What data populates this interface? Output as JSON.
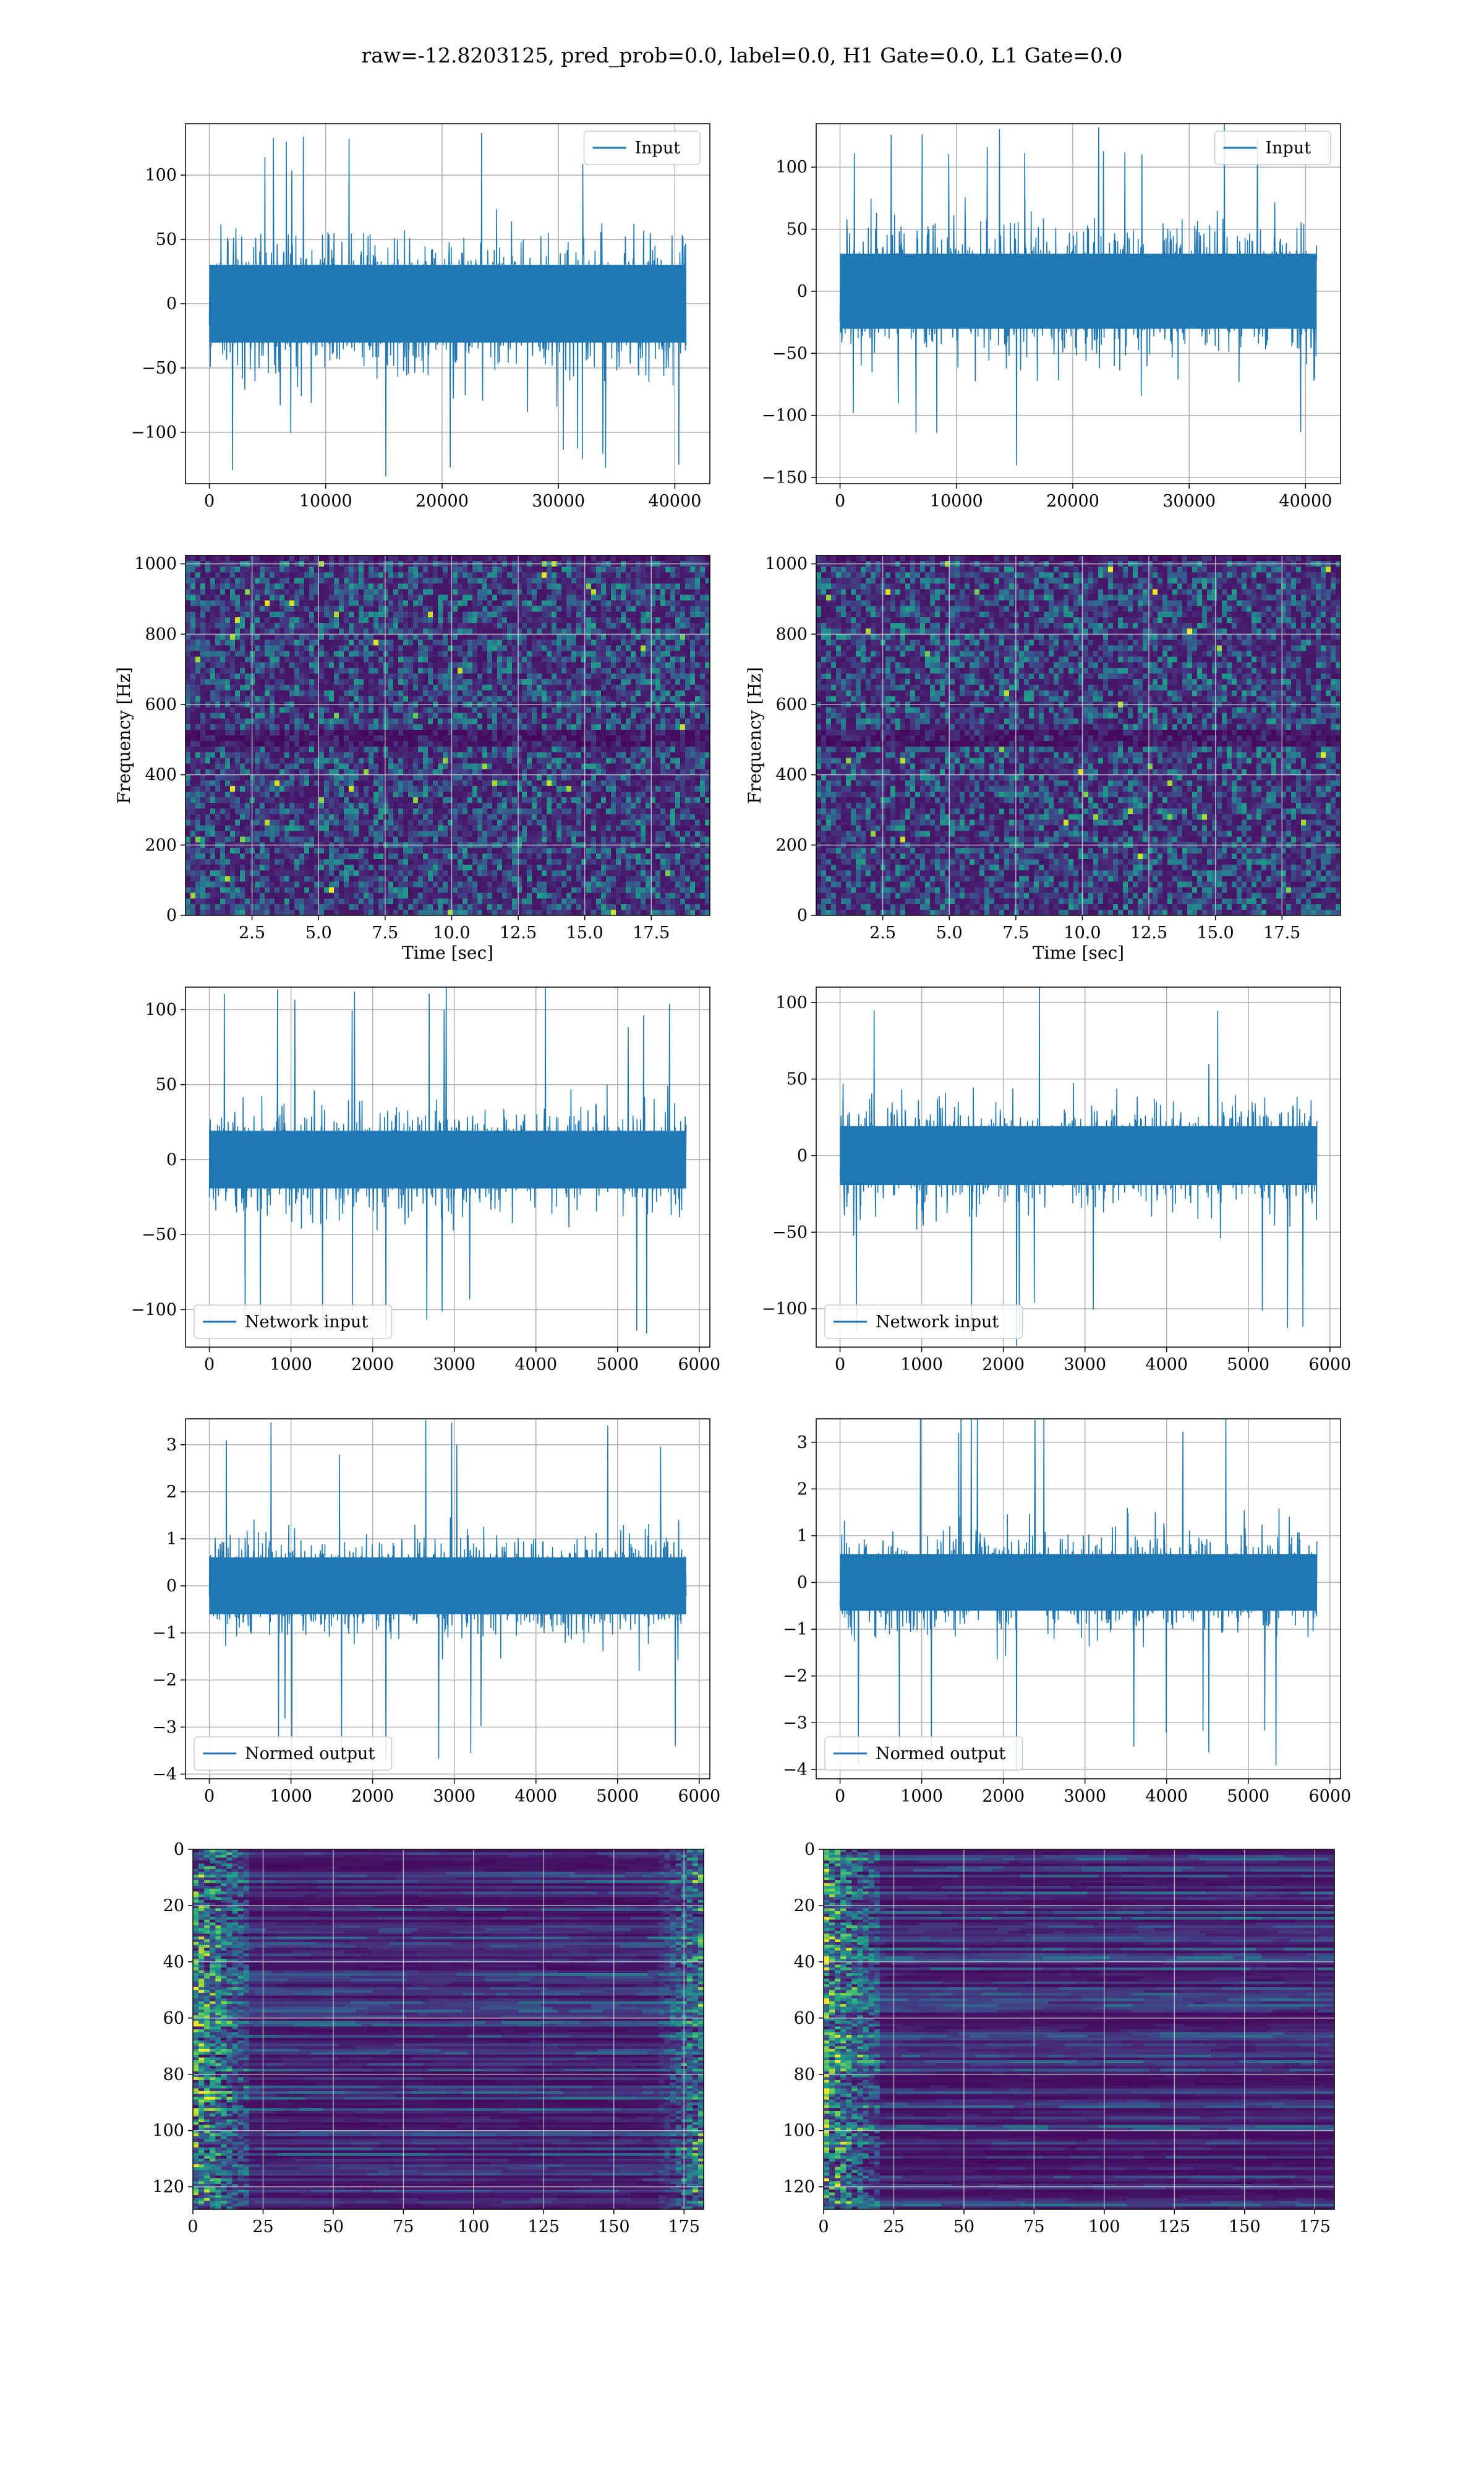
{
  "suptitle": "raw=-12.8203125, pred_prob=0.0, label=0.0, H1 Gate=0.0, L1 Gate=0.0",
  "colors": {
    "line": "#1f77b4",
    "grid": "#b0b0b0",
    "spine": "#000000"
  },
  "chart_data": [
    {
      "id": "input-left",
      "type": "line",
      "title": "",
      "xlabel": "",
      "ylabel": "",
      "xlim": [
        -2048,
        43008
      ],
      "ylim": [
        -140,
        140
      ],
      "xticks": [
        0,
        10000,
        20000,
        30000,
        40000
      ],
      "xtick_labels": [
        "0",
        "10000",
        "20000",
        "30000",
        "40000"
      ],
      "yticks": [
        -100,
        -50,
        0,
        50,
        100
      ],
      "ytick_labels": [
        "−100",
        "−50",
        "0",
        "50",
        "100"
      ],
      "grid": true,
      "legend": {
        "location": "upper right",
        "entries": [
          "Input"
        ]
      },
      "series": [
        {
          "name": "Input",
          "x_range": [
            0,
            40960
          ],
          "points": 1400,
          "typical_abs": 55,
          "peak_abs": 134,
          "shape": "gaussian noise"
        }
      ]
    },
    {
      "id": "input-right",
      "type": "line",
      "title": "",
      "xlabel": "",
      "ylabel": "",
      "xlim": [
        -2048,
        43008
      ],
      "ylim": [
        -155,
        135
      ],
      "xticks": [
        0,
        10000,
        20000,
        30000,
        40000
      ],
      "xtick_labels": [
        "0",
        "10000",
        "20000",
        "30000",
        "40000"
      ],
      "yticks": [
        -150,
        -100,
        -50,
        0,
        50,
        100
      ],
      "ytick_labels": [
        "−150",
        "−100",
        "−50",
        "0",
        "50",
        "100"
      ],
      "grid": true,
      "legend": {
        "location": "upper right",
        "entries": [
          "Input"
        ]
      },
      "series": [
        {
          "name": "Input",
          "x_range": [
            0,
            40960
          ],
          "points": 1400,
          "typical_abs": 55,
          "peak_abs": 140,
          "shape": "gaussian noise"
        }
      ]
    },
    {
      "id": "spectrogram-left",
      "type": "heatmap",
      "title": "",
      "xlabel": "Time [sec]",
      "ylabel": "Frequency [Hz]",
      "xlim": [
        0,
        19.7
      ],
      "ylim": [
        0,
        1024
      ],
      "xticks": [
        2.5,
        5.0,
        7.5,
        10.0,
        12.5,
        15.0,
        17.5
      ],
      "xtick_labels": [
        "2.5",
        "5.0",
        "7.5",
        "10.0",
        "12.5",
        "15.0",
        "17.5"
      ],
      "yticks": [
        0,
        200,
        400,
        600,
        800,
        1000
      ],
      "ytick_labels": [
        "0",
        "200",
        "400",
        "600",
        "800",
        "1000"
      ],
      "grid": true,
      "colormap": "viridis",
      "colormap_stops": [
        "#440154",
        "#472c7a",
        "#3b518b",
        "#2c718e",
        "#21908d",
        "#27ad81",
        "#5cc863",
        "#aadc32",
        "#fde725"
      ],
      "features": {
        "dark_band_hz": [
          480,
          520
        ],
        "pattern": "speckled noise"
      }
    },
    {
      "id": "spectrogram-right",
      "type": "heatmap",
      "title": "",
      "xlabel": "Time [sec]",
      "ylabel": "Frequency [Hz]",
      "xlim": [
        0,
        19.7
      ],
      "ylim": [
        0,
        1024
      ],
      "xticks": [
        2.5,
        5.0,
        7.5,
        10.0,
        12.5,
        15.0,
        17.5
      ],
      "xtick_labels": [
        "2.5",
        "5.0",
        "7.5",
        "10.0",
        "12.5",
        "15.0",
        "17.5"
      ],
      "yticks": [
        0,
        200,
        400,
        600,
        800,
        1000
      ],
      "ytick_labels": [
        "0",
        "200",
        "400",
        "600",
        "800",
        "1000"
      ],
      "grid": true,
      "colormap": "viridis",
      "colormap_stops": [
        "#440154",
        "#472c7a",
        "#3b518b",
        "#2c718e",
        "#21908d",
        "#27ad81",
        "#5cc863",
        "#aadc32",
        "#fde725"
      ],
      "features": {
        "dark_band_hz": [
          480,
          520
        ],
        "pattern": "speckled noise"
      }
    },
    {
      "id": "network-input-left",
      "type": "line",
      "title": "",
      "xlabel": "",
      "ylabel": "",
      "xlim": [
        -292,
        6130
      ],
      "ylim": [
        -125,
        115
      ],
      "xticks": [
        0,
        1000,
        2000,
        3000,
        4000,
        5000,
        6000
      ],
      "xtick_labels": [
        "0",
        "1000",
        "2000",
        "3000",
        "4000",
        "5000",
        "6000"
      ],
      "yticks": [
        -100,
        -50,
        0,
        50,
        100
      ],
      "ytick_labels": [
        "−100",
        "−50",
        "0",
        "50",
        "100"
      ],
      "grid": true,
      "legend": {
        "location": "lower left",
        "entries": [
          "Network input"
        ]
      },
      "series": [
        {
          "name": "Network input",
          "x_range": [
            0,
            5840
          ],
          "points": 1400,
          "typical_abs": 35,
          "peak_abs": 117,
          "shape": "gaussian noise"
        }
      ]
    },
    {
      "id": "network-input-right",
      "type": "line",
      "title": "",
      "xlabel": "",
      "ylabel": "",
      "xlim": [
        -292,
        6130
      ],
      "ylim": [
        -125,
        110
      ],
      "xticks": [
        0,
        1000,
        2000,
        3000,
        4000,
        5000,
        6000
      ],
      "xtick_labels": [
        "0",
        "1000",
        "2000",
        "3000",
        "4000",
        "5000",
        "6000"
      ],
      "yticks": [
        -100,
        -50,
        0,
        50,
        100
      ],
      "ytick_labels": [
        "−100",
        "−50",
        "0",
        "50",
        "100"
      ],
      "grid": true,
      "legend": {
        "location": "lower left",
        "entries": [
          "Network input"
        ]
      },
      "series": [
        {
          "name": "Network input",
          "x_range": [
            0,
            5840
          ],
          "points": 1400,
          "typical_abs": 35,
          "peak_abs": 124,
          "shape": "gaussian noise"
        }
      ]
    },
    {
      "id": "normed-output-left",
      "type": "line",
      "title": "",
      "xlabel": "",
      "ylabel": "",
      "xlim": [
        -292,
        6130
      ],
      "ylim": [
        -4.1,
        3.55
      ],
      "xticks": [
        0,
        1000,
        2000,
        3000,
        4000,
        5000,
        6000
      ],
      "xtick_labels": [
        "0",
        "1000",
        "2000",
        "3000",
        "4000",
        "5000",
        "6000"
      ],
      "yticks": [
        -4,
        -3,
        -2,
        -1,
        0,
        1,
        2,
        3
      ],
      "ytick_labels": [
        "−4",
        "−3",
        "−2",
        "−1",
        "0",
        "1",
        "2",
        "3"
      ],
      "grid": true,
      "legend": {
        "location": "lower left",
        "entries": [
          "Normed output"
        ]
      },
      "series": [
        {
          "name": "Normed output",
          "x_range": [
            0,
            5840
          ],
          "points": 1400,
          "typical_abs": 1.1,
          "peak_abs": 3.7,
          "shape": "gaussian noise"
        }
      ]
    },
    {
      "id": "normed-output-right",
      "type": "line",
      "title": "",
      "xlabel": "",
      "ylabel": "",
      "xlim": [
        -292,
        6130
      ],
      "ylim": [
        -4.2,
        3.5
      ],
      "xticks": [
        0,
        1000,
        2000,
        3000,
        4000,
        5000,
        6000
      ],
      "xtick_labels": [
        "0",
        "1000",
        "2000",
        "3000",
        "4000",
        "5000",
        "6000"
      ],
      "yticks": [
        -4,
        -3,
        -2,
        -1,
        0,
        1,
        2,
        3
      ],
      "ytick_labels": [
        "−4",
        "−3",
        "−2",
        "−1",
        "0",
        "1",
        "2",
        "3"
      ],
      "grid": true,
      "legend": {
        "location": "lower left",
        "entries": [
          "Normed output"
        ]
      },
      "series": [
        {
          "name": "Normed output",
          "x_range": [
            0,
            5840
          ],
          "points": 1400,
          "typical_abs": 1.1,
          "peak_abs": 4.0,
          "shape": "gaussian noise"
        }
      ]
    },
    {
      "id": "feature-map-left",
      "type": "heatmap",
      "title": "",
      "xlabel": "",
      "ylabel": "",
      "xlim": [
        0,
        182
      ],
      "ylim": [
        128,
        0
      ],
      "xticks": [
        0,
        25,
        50,
        75,
        100,
        125,
        150,
        175
      ],
      "xtick_labels": [
        "0",
        "25",
        "50",
        "75",
        "100",
        "125",
        "150",
        "175"
      ],
      "yticks": [
        0,
        20,
        40,
        60,
        80,
        100,
        120
      ],
      "ytick_labels": [
        "0",
        "20",
        "40",
        "60",
        "80",
        "100",
        "120"
      ],
      "grid": true,
      "colormap": "viridis",
      "shape": [
        128,
        182
      ],
      "colormap_stops": [
        "#440154",
        "#472c7a",
        "#3b518b",
        "#2c718e",
        "#21908d",
        "#27ad81",
        "#5cc863",
        "#aadc32",
        "#fde725"
      ],
      "features": {
        "bright_edges": [
          "left",
          "right"
        ],
        "pattern": "horizontal streaks"
      }
    },
    {
      "id": "feature-map-right",
      "type": "heatmap",
      "title": "",
      "xlabel": "",
      "ylabel": "",
      "xlim": [
        0,
        182
      ],
      "ylim": [
        128,
        0
      ],
      "xticks": [
        0,
        25,
        50,
        75,
        100,
        125,
        150,
        175
      ],
      "xtick_labels": [
        "0",
        "25",
        "50",
        "75",
        "100",
        "125",
        "150",
        "175"
      ],
      "yticks": [
        0,
        20,
        40,
        60,
        80,
        100,
        120
      ],
      "ytick_labels": [
        "0",
        "20",
        "40",
        "60",
        "80",
        "100",
        "120"
      ],
      "grid": true,
      "colormap": "viridis",
      "shape": [
        128,
        182
      ],
      "colormap_stops": [
        "#440154",
        "#472c7a",
        "#3b518b",
        "#2c718e",
        "#21908d",
        "#27ad81",
        "#5cc863",
        "#aadc32",
        "#fde725"
      ],
      "features": {
        "bright_edges": [
          "left"
        ],
        "pattern": "horizontal streaks"
      }
    }
  ]
}
